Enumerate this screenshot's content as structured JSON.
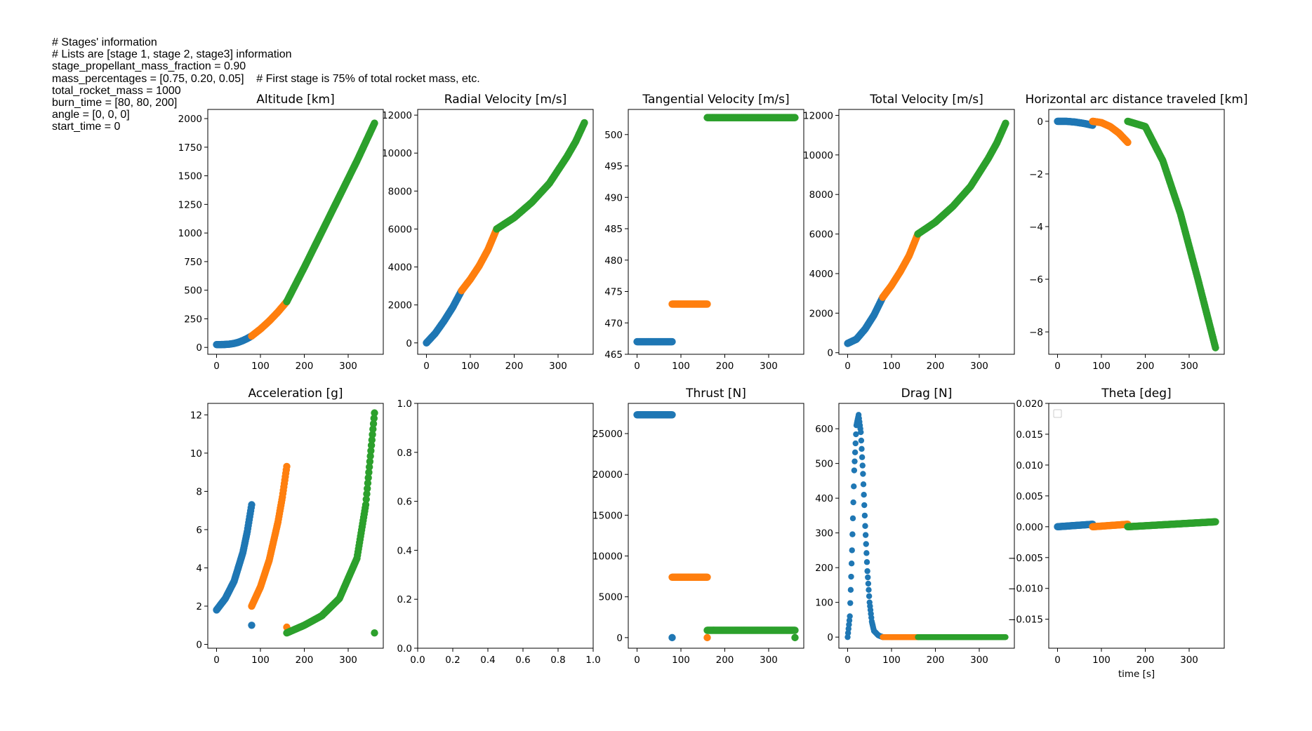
{
  "notes": [
    "# Stages' information",
    "# Lists are [stage 1, stage 2, stage3] information",
    "stage_propellant_mass_fraction = 0.90",
    "mass_percentages = [0.75, 0.20, 0.05]    # First stage is 75% of total rocket mass, etc.",
    "total_rocket_mass = 1000",
    "burn_time = [80, 80, 200]",
    "angle = [0, 0, 0]",
    "start_time = 0"
  ],
  "colors": {
    "stage1": "#1f77b4",
    "stage2": "#ff7f0e",
    "stage3": "#2ca02c"
  },
  "chart_data": [
    {
      "type": "scatter",
      "title": "Altitude [km]",
      "xlabel": "",
      "ylabel": "",
      "xlim": [
        -20,
        380
      ],
      "ylim": [
        -60,
        2080
      ],
      "xticks": [
        0,
        100,
        200,
        300
      ],
      "yticks": [
        0,
        250,
        500,
        750,
        1000,
        1250,
        1500,
        1750,
        2000
      ],
      "series": [
        {
          "color": "#1f77b4",
          "x": [
            0,
            10,
            20,
            30,
            40,
            50,
            60,
            70,
            80
          ],
          "y": [
            25,
            25,
            26,
            29,
            35,
            45,
            60,
            78,
            100
          ]
        },
        {
          "color": "#ff7f0e",
          "x": [
            80,
            100,
            120,
            140,
            160
          ],
          "y": [
            100,
            160,
            230,
            310,
            400
          ]
        },
        {
          "color": "#2ca02c",
          "x": [
            160,
            200,
            240,
            280,
            320,
            360
          ],
          "y": [
            400,
            700,
            1010,
            1320,
            1630,
            1960
          ]
        }
      ]
    },
    {
      "type": "scatter",
      "title": "Radial Velocity [m/s]",
      "xlabel": "",
      "ylabel": "",
      "xlim": [
        -20,
        380
      ],
      "ylim": [
        -600,
        12300
      ],
      "xticks": [
        0,
        100,
        200,
        300
      ],
      "yticks": [
        0,
        2000,
        4000,
        6000,
        8000,
        10000,
        12000
      ],
      "series": [
        {
          "color": "#1f77b4",
          "x": [
            0,
            20,
            40,
            60,
            80
          ],
          "y": [
            0,
            500,
            1150,
            1880,
            2750
          ]
        },
        {
          "color": "#ff7f0e",
          "x": [
            80,
            100,
            120,
            140,
            160
          ],
          "y": [
            2750,
            3350,
            4050,
            4900,
            6000
          ]
        },
        {
          "color": "#2ca02c",
          "x": [
            160,
            200,
            240,
            280,
            320,
            340,
            360
          ],
          "y": [
            6000,
            6600,
            7400,
            8400,
            9800,
            10600,
            11600
          ]
        }
      ]
    },
    {
      "type": "scatter",
      "title": "Tangential Velocity [m/s]",
      "xlabel": "",
      "ylabel": "",
      "xlim": [
        -20,
        380
      ],
      "ylim": [
        465,
        504
      ],
      "xticks": [
        0,
        100,
        200,
        300
      ],
      "yticks": [
        465,
        470,
        475,
        480,
        485,
        490,
        495,
        500
      ],
      "series": [
        {
          "color": "#1f77b4",
          "x": [
            0,
            80
          ],
          "y": [
            467,
            467
          ]
        },
        {
          "color": "#ff7f0e",
          "x": [
            80,
            160
          ],
          "y": [
            473,
            473
          ]
        },
        {
          "color": "#2ca02c",
          "x": [
            160,
            360
          ],
          "y": [
            502.7,
            502.7
          ]
        }
      ]
    },
    {
      "type": "scatter",
      "title": "Total Velocity [m/s]",
      "xlabel": "",
      "ylabel": "",
      "xlim": [
        -20,
        380
      ],
      "ylim": [
        -80,
        12300
      ],
      "xticks": [
        0,
        100,
        200,
        300
      ],
      "yticks": [
        0,
        2000,
        4000,
        6000,
        8000,
        10000,
        12000
      ],
      "series": [
        {
          "color": "#1f77b4",
          "x": [
            0,
            20,
            40,
            60,
            80
          ],
          "y": [
            470,
            680,
            1200,
            1900,
            2800
          ]
        },
        {
          "color": "#ff7f0e",
          "x": [
            80,
            100,
            120,
            140,
            160
          ],
          "y": [
            2800,
            3400,
            4100,
            4900,
            6000
          ]
        },
        {
          "color": "#2ca02c",
          "x": [
            160,
            200,
            240,
            280,
            320,
            340,
            360
          ],
          "y": [
            6000,
            6600,
            7400,
            8400,
            9800,
            10600,
            11600
          ]
        }
      ]
    },
    {
      "type": "scatter",
      "title": "Horizontal arc distance traveled [km]",
      "xlabel": "",
      "ylabel": "",
      "xlim": [
        -20,
        380
      ],
      "ylim": [
        -8.85,
        0.45
      ],
      "xticks": [
        0,
        100,
        200,
        300
      ],
      "yticks": [
        0,
        -2,
        -4,
        -6,
        -8
      ],
      "series": [
        {
          "color": "#1f77b4",
          "x": [
            0,
            20,
            40,
            60,
            80
          ],
          "y": [
            0,
            0,
            -0.03,
            -0.08,
            -0.15
          ]
        },
        {
          "color": "#ff7f0e",
          "x": [
            80,
            100,
            120,
            140,
            160
          ],
          "y": [
            0,
            -0.05,
            -0.2,
            -0.45,
            -0.8
          ]
        },
        {
          "color": "#2ca02c",
          "x": [
            160,
            200,
            240,
            280,
            320,
            360
          ],
          "y": [
            0,
            -0.2,
            -1.5,
            -3.5,
            -6,
            -8.6
          ]
        }
      ]
    },
    {
      "type": "scatter",
      "title": "Acceleration [g]",
      "xlabel": "",
      "ylabel": "",
      "xlim": [
        -20,
        380
      ],
      "ylim": [
        -0.2,
        12.6
      ],
      "xticks": [
        0,
        100,
        200,
        300
      ],
      "yticks": [
        0,
        2,
        4,
        6,
        8,
        10,
        12
      ],
      "series": [
        {
          "color": "#1f77b4",
          "x": [
            0,
            20,
            40,
            60,
            70,
            80,
            80
          ],
          "y": [
            1.8,
            2.4,
            3.3,
            4.8,
            5.9,
            7.3,
            1.0
          ]
        },
        {
          "color": "#ff7f0e",
          "x": [
            80,
            100,
            120,
            140,
            150,
            160,
            160
          ],
          "y": [
            2.0,
            3.0,
            4.4,
            6.4,
            7.7,
            9.3,
            0.9
          ]
        },
        {
          "color": "#2ca02c",
          "x": [
            160,
            200,
            240,
            280,
            320,
            340,
            360,
            360
          ],
          "y": [
            0.6,
            1.0,
            1.5,
            2.4,
            4.5,
            7.3,
            12.1,
            0.6
          ]
        }
      ]
    },
    {
      "type": "scatter",
      "title": "",
      "xlabel": "",
      "ylabel": "",
      "xlim": [
        0,
        1
      ],
      "ylim": [
        0,
        1
      ],
      "xticks": [
        0,
        0.2,
        0.4,
        0.6,
        0.8,
        1
      ],
      "yticks": [
        0,
        0.2,
        0.4,
        0.6,
        0.8,
        1
      ],
      "series": []
    },
    {
      "type": "scatter",
      "title": "Thrust [N]",
      "xlabel": "",
      "ylabel": "",
      "xlim": [
        -20,
        380
      ],
      "ylim": [
        -1300,
        28700
      ],
      "xticks": [
        0,
        100,
        200,
        300
      ],
      "yticks": [
        0,
        5000,
        10000,
        15000,
        20000,
        25000
      ],
      "series": [
        {
          "color": "#1f77b4",
          "x": [
            0,
            80,
            80
          ],
          "y": [
            27300,
            27300,
            0
          ]
        },
        {
          "color": "#ff7f0e",
          "x": [
            80,
            160,
            160
          ],
          "y": [
            7400,
            7400,
            0
          ]
        },
        {
          "color": "#2ca02c",
          "x": [
            160,
            360,
            360
          ],
          "y": [
            900,
            900,
            0
          ]
        }
      ]
    },
    {
      "type": "scatter",
      "title": "Drag [N]",
      "xlabel": "",
      "ylabel": "",
      "xlim": [
        -20,
        380
      ],
      "ylim": [
        -32,
        673
      ],
      "xticks": [
        0,
        100,
        200,
        300
      ],
      "yticks": [
        0,
        100,
        200,
        300,
        400,
        500,
        600
      ],
      "series": [
        {
          "color": "#1f77b4",
          "x": [
            0,
            5,
            10,
            15,
            20,
            25,
            30,
            35,
            40,
            45,
            50,
            55,
            60,
            70,
            80
          ],
          "y": [
            0,
            60,
            250,
            480,
            610,
            640,
            590,
            470,
            320,
            190,
            100,
            45,
            18,
            5,
            0
          ]
        },
        {
          "color": "#ff7f0e",
          "x": [
            80,
            160
          ],
          "y": [
            0,
            0
          ]
        },
        {
          "color": "#2ca02c",
          "x": [
            160,
            360
          ],
          "y": [
            0,
            0
          ]
        }
      ]
    },
    {
      "type": "scatter",
      "title": "Theta [deg]",
      "xlabel": "time [s]",
      "ylabel": "",
      "xlim": [
        -20,
        380
      ],
      "ylim": [
        -0.0197,
        0.02
      ],
      "xticks": [
        0,
        100,
        200,
        300
      ],
      "yticks": [
        -0.015,
        -0.01,
        -0.005,
        0,
        0.005,
        0.01,
        0.015,
        0.02
      ],
      "series": [
        {
          "color": "#1f77b4",
          "x": [
            0,
            40,
            80
          ],
          "y": [
            0,
            0.0002,
            0.0004
          ]
        },
        {
          "color": "#ff7f0e",
          "x": [
            80,
            120,
            160
          ],
          "y": [
            0,
            0.0002,
            0.0004
          ]
        },
        {
          "color": "#2ca02c",
          "x": [
            160,
            260,
            360
          ],
          "y": [
            0,
            0.0004,
            0.0008
          ]
        }
      ]
    }
  ]
}
